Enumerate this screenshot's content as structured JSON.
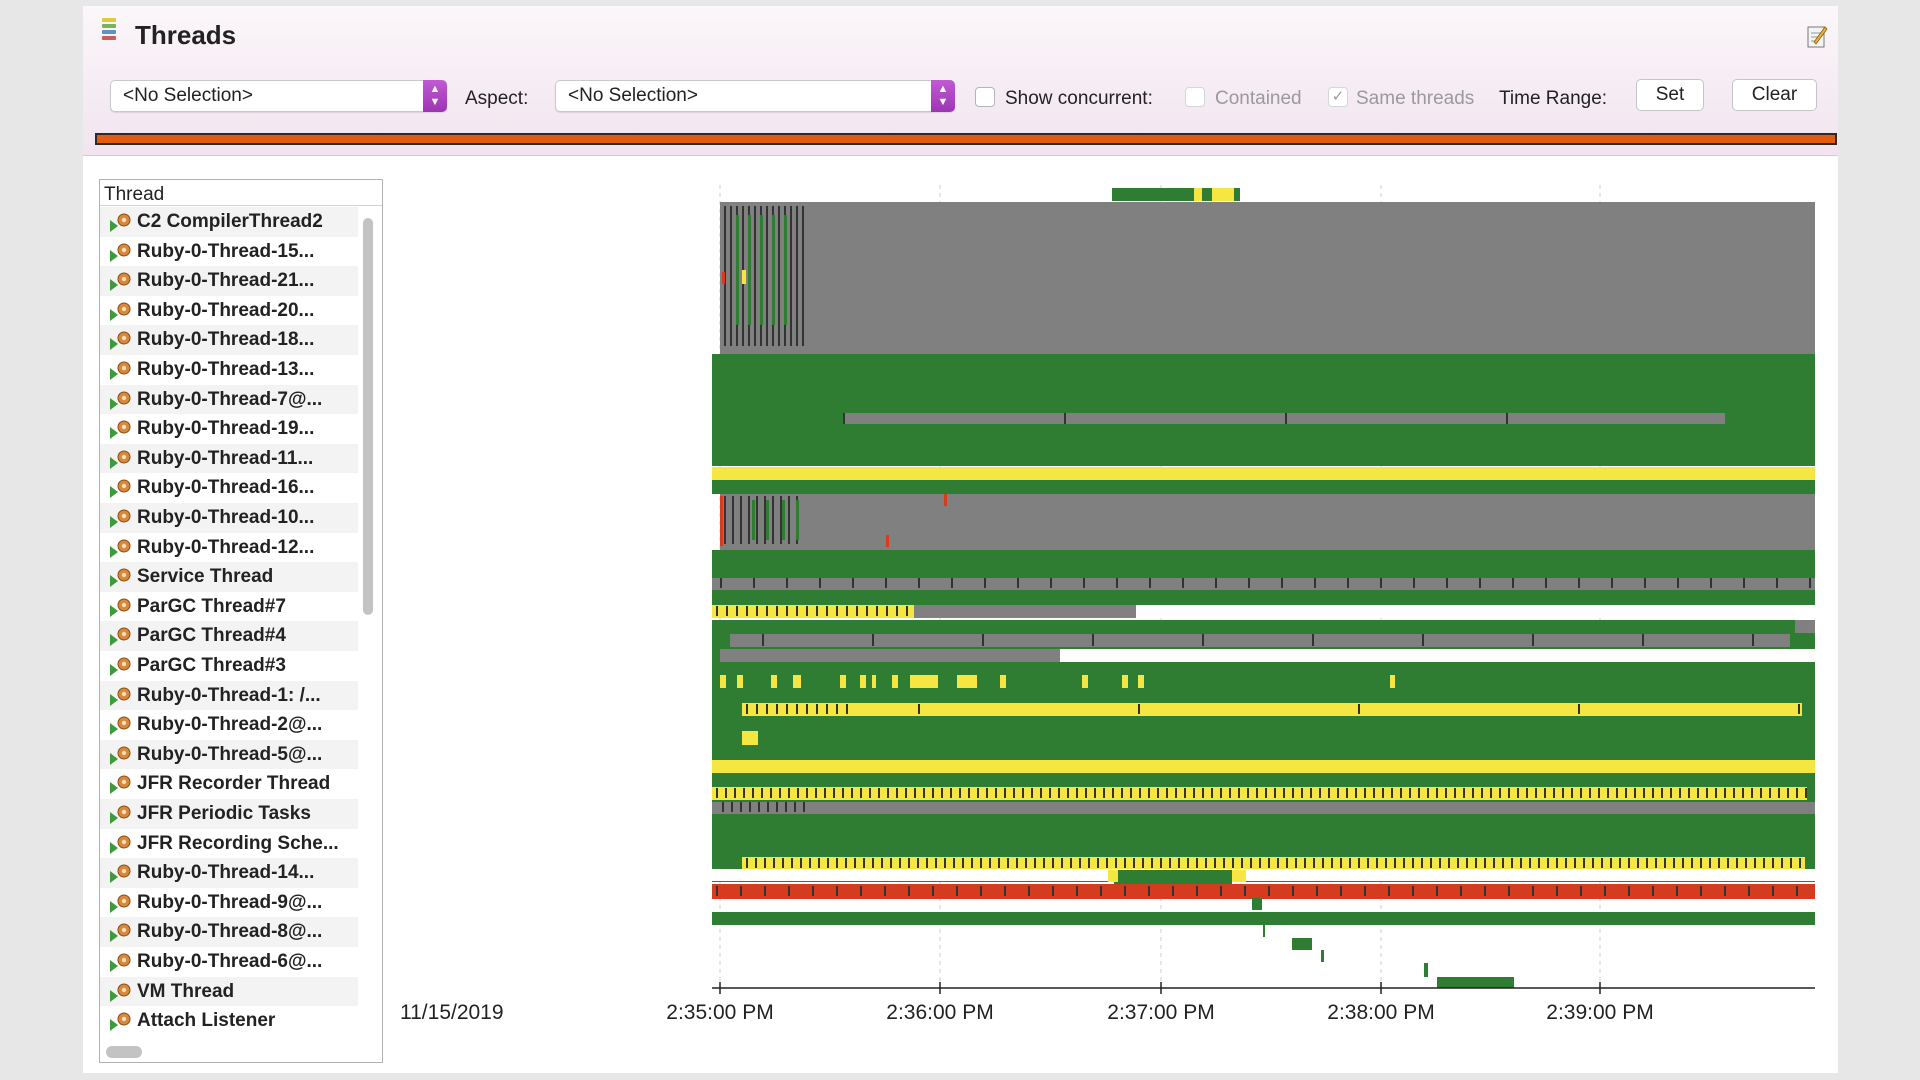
{
  "window": {
    "title": "Threads",
    "title_icon": "threads-stack-icon",
    "edit_icon": "edit-page-icon"
  },
  "toolbar": {
    "first_select": "<No Selection>",
    "aspect_label": "Aspect:",
    "aspect_select": "<No Selection>",
    "show_concurrent_label": "Show concurrent:",
    "show_concurrent_checked": false,
    "contained_label": "Contained",
    "contained_checked": false,
    "same_threads_label": "Same threads",
    "same_threads_checked": true,
    "same_threads_mark": "✓",
    "time_range_label": "Time Range:",
    "set_label": "Set",
    "clear_label": "Clear"
  },
  "colors": {
    "running": "#2e7d32",
    "idle": "#808080",
    "waiting": "#f5e642",
    "blocked": "#d63b1f",
    "progress": "#e35b0c",
    "accent": "#b04ac4"
  },
  "thread_list": {
    "header": "Thread",
    "items": [
      "C2 CompilerThread2",
      "Ruby-0-Thread-15...",
      "Ruby-0-Thread-21...",
      "Ruby-0-Thread-20...",
      "Ruby-0-Thread-18...",
      "Ruby-0-Thread-13...",
      "Ruby-0-Thread-7@...",
      "Ruby-0-Thread-19...",
      "Ruby-0-Thread-11...",
      "Ruby-0-Thread-16...",
      "Ruby-0-Thread-10...",
      "Ruby-0-Thread-12...",
      "Service Thread",
      "ParGC Thread#7",
      "ParGC Thread#4",
      "ParGC Thread#3",
      "Ruby-0-Thread-1: /...",
      "Ruby-0-Thread-2@...",
      "Ruby-0-Thread-5@...",
      "JFR Recorder Thread",
      "JFR Periodic Tasks",
      "JFR Recording Sche...",
      "Ruby-0-Thread-14...",
      "Ruby-0-Thread-9@...",
      "Ruby-0-Thread-8@...",
      "Ruby-0-Thread-6@...",
      "VM Thread",
      "Attach Listener"
    ]
  },
  "timeline": {
    "date_label": "11/15/2019",
    "ticks": [
      "2:35:00 PM",
      "2:36:00 PM",
      "2:37:00 PM",
      "2:38:00 PM",
      "2:39:00 PM"
    ]
  }
}
